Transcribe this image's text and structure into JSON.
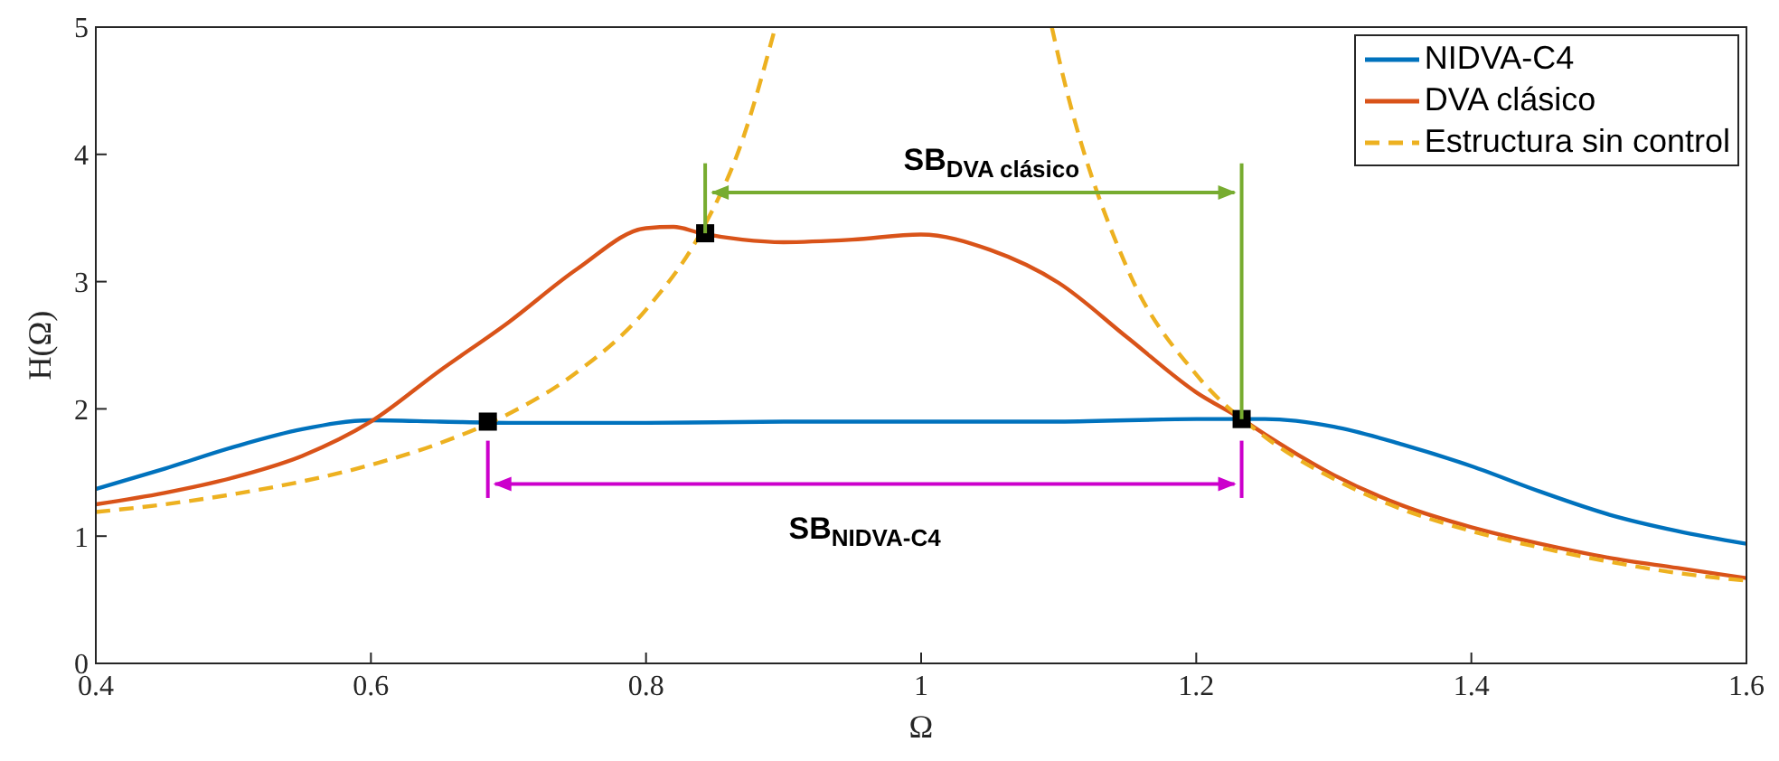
{
  "chart_data": {
    "type": "line",
    "xlabel": "Ω",
    "ylabel": "H(Ω)",
    "xlim": [
      0.4,
      1.6
    ],
    "ylim": [
      0,
      5
    ],
    "xticks": [
      0.4,
      0.6,
      0.8,
      1,
      1.2,
      1.4,
      1.6
    ],
    "yticks": [
      0,
      1,
      2,
      3,
      4,
      5
    ],
    "grid": false,
    "legend": "top right",
    "annotations": [
      "SB$_{DVA clásico}$",
      "SB$_{NIDVA-C4}$"
    ],
    "series": [
      {
        "name": "NIDVA-C4",
        "color": "#0072bd",
        "line_style": "solid",
        "x": [
          0.4,
          0.45,
          0.5,
          0.55,
          0.6,
          0.65,
          0.7,
          0.8,
          0.9,
          1.0,
          1.1,
          1.2,
          1.25,
          1.3,
          1.35,
          1.4,
          1.45,
          1.5,
          1.55,
          1.6
        ],
        "values": [
          1.37,
          1.53,
          1.7,
          1.84,
          1.91,
          1.9,
          1.89,
          1.89,
          1.9,
          1.9,
          1.9,
          1.92,
          1.92,
          1.86,
          1.72,
          1.55,
          1.35,
          1.17,
          1.04,
          0.94
        ]
      },
      {
        "name": "DVA clásico",
        "color": "#d95319",
        "line_style": "solid",
        "x": [
          0.4,
          0.45,
          0.5,
          0.55,
          0.6,
          0.65,
          0.7,
          0.75,
          0.8,
          0.82,
          0.84,
          0.87,
          0.9,
          0.95,
          1.0,
          1.05,
          1.1,
          1.15,
          1.2,
          1.233,
          1.25,
          1.3,
          1.35,
          1.4,
          1.45,
          1.5,
          1.55,
          1.6
        ],
        "values": [
          1.25,
          1.34,
          1.46,
          1.63,
          1.9,
          2.3,
          2.68,
          3.1,
          3.42,
          3.43,
          3.38,
          3.33,
          3.31,
          3.33,
          3.37,
          3.25,
          2.99,
          2.56,
          2.13,
          1.92,
          1.8,
          1.48,
          1.24,
          1.07,
          0.94,
          0.83,
          0.75,
          0.67
        ]
      },
      {
        "name": "Estructura sin control",
        "color": "#edb120",
        "line_style": "dashed",
        "x": [
          0.4,
          0.45,
          0.5,
          0.55,
          0.6,
          0.65,
          0.7,
          0.75,
          0.8,
          0.84,
          0.87,
          0.894,
          1.0,
          1.095,
          1.1,
          1.15,
          1.2,
          1.25,
          1.3,
          1.35,
          1.4,
          1.45,
          1.5,
          1.55,
          1.6
        ],
        "values": [
          1.19,
          1.25,
          1.33,
          1.43,
          1.56,
          1.73,
          1.96,
          2.29,
          2.78,
          3.39,
          4.11,
          5,
          null,
          5,
          4.76,
          3.1,
          2.27,
          1.78,
          1.45,
          1.21,
          1.04,
          0.91,
          0.8,
          0.71,
          0.65
        ]
      },
      {
        "type": "scatter",
        "color": "#000000",
        "marker": "square",
        "x": [
          0.685,
          0.843,
          1.233
        ],
        "values": [
          1.9,
          3.38,
          1.92
        ]
      }
    ]
  }
}
